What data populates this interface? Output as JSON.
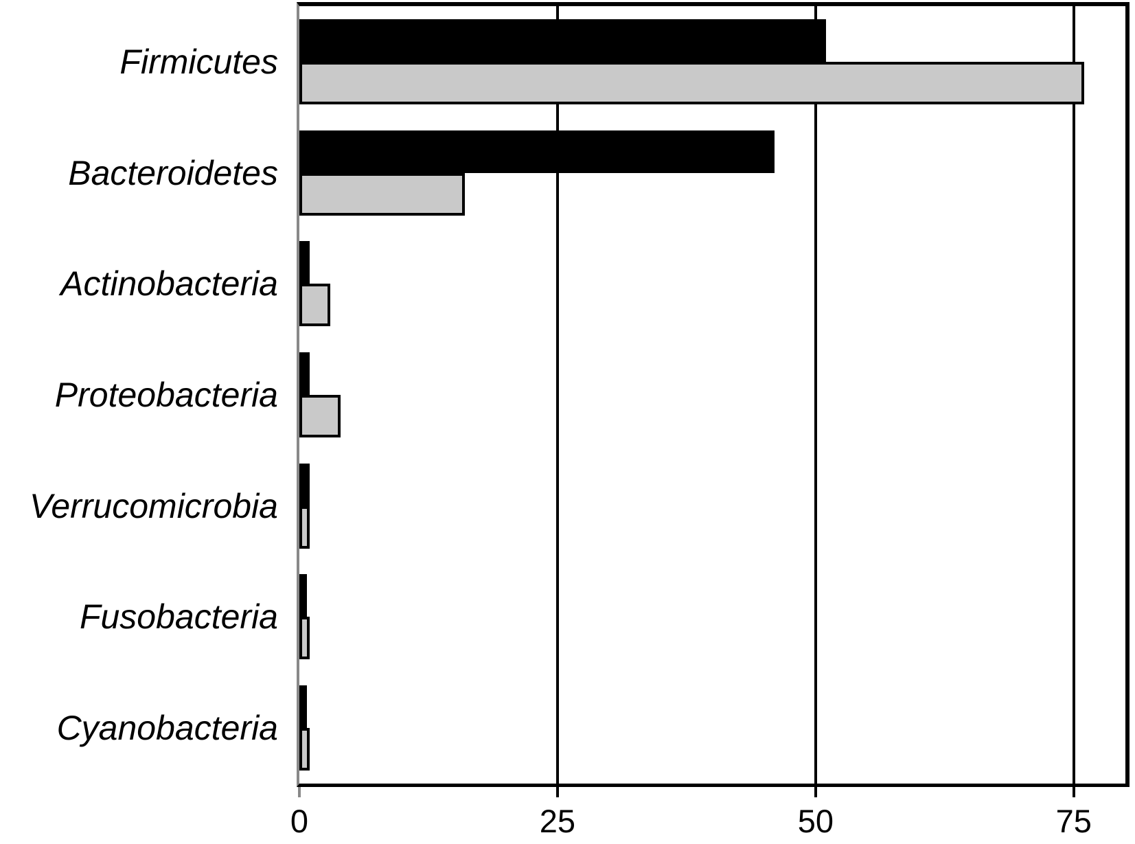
{
  "chart_data": {
    "type": "bar",
    "orientation": "horizontal",
    "title": "",
    "xlabel": "",
    "ylabel": "",
    "categories": [
      "Firmicutes",
      "Bacteroidetes",
      "Actinobacteria",
      "Proteobacteria",
      "Verrucomicrobia",
      "Fusobacteria",
      "Cyanobacteria"
    ],
    "series": [
      {
        "name": "black-bars",
        "color": "#000000",
        "values": [
          51,
          46,
          1,
          1,
          1,
          0.7,
          0.7
        ]
      },
      {
        "name": "gray-bars",
        "color": "#c9c9c9",
        "values": [
          76,
          16,
          3,
          4,
          1,
          1,
          1
        ]
      }
    ],
    "x_ticks": [
      0,
      25,
      50,
      75
    ],
    "xlim": [
      0,
      80
    ],
    "grid": "vertical lines at ticks, behind bars",
    "legend_position": "none",
    "colors": {
      "bar_outline": "#000000",
      "left_axis": "#898989",
      "frame": "#000000",
      "background": "#ffffff"
    }
  }
}
